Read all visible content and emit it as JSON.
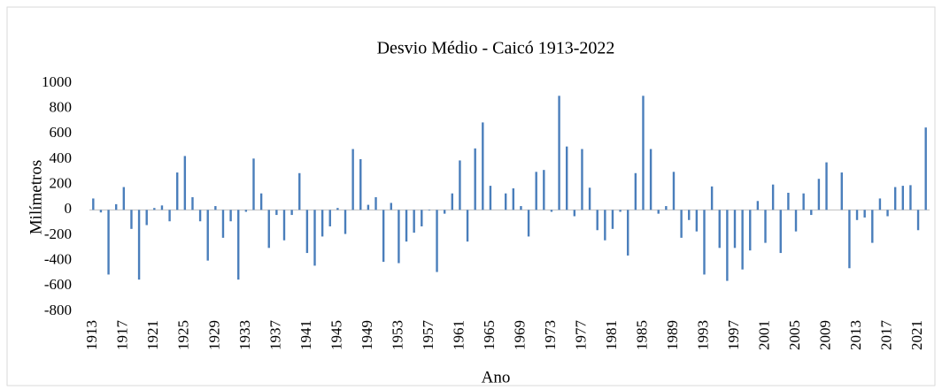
{
  "chart_data": {
    "type": "bar",
    "title": "Desvio Médio - Caicó 1913-2022",
    "x_label": "Ano",
    "y_label": "Milímetros",
    "color": "#4a7ebb",
    "grid": false,
    "ylim": [
      -800,
      1000
    ],
    "yticks": [
      -800,
      -600,
      -400,
      -200,
      0,
      200,
      400,
      600,
      800,
      1000
    ],
    "categories": [
      "1913",
      null,
      null,
      null,
      "1917",
      null,
      null,
      null,
      "1921",
      null,
      null,
      null,
      "1925",
      null,
      null,
      null,
      "1929",
      null,
      null,
      null,
      "1933",
      null,
      null,
      null,
      "1937",
      null,
      null,
      null,
      "1941",
      null,
      null,
      null,
      "1945",
      null,
      null,
      null,
      "1949",
      null,
      null,
      null,
      "1953",
      null,
      null,
      null,
      "1957",
      null,
      null,
      null,
      "1961",
      null,
      null,
      null,
      "1965",
      null,
      null,
      null,
      "1969",
      null,
      null,
      null,
      "1973",
      null,
      null,
      null,
      "1977",
      null,
      null,
      null,
      "1981",
      null,
      null,
      null,
      "1985",
      null,
      null,
      null,
      "1989",
      null,
      null,
      null,
      "1993",
      null,
      null,
      null,
      "1997",
      null,
      null,
      null,
      "2001",
      null,
      null,
      null,
      "2005",
      null,
      null,
      null,
      "2009",
      null,
      null,
      null,
      "2013",
      null,
      null,
      null,
      "2017",
      null,
      null,
      null,
      "2021",
      null
    ],
    "values": [
      90,
      -20,
      -510,
      45,
      180,
      -150,
      -550,
      -120,
      15,
      35,
      -90,
      295,
      425,
      100,
      -90,
      -400,
      30,
      -220,
      -90,
      -550,
      -15,
      405,
      130,
      -300,
      -40,
      -240,
      -40,
      290,
      -340,
      -440,
      -210,
      -130,
      15,
      -190,
      480,
      400,
      40,
      100,
      -410,
      55,
      -420,
      -250,
      -180,
      -130,
      -5,
      -490,
      -30,
      130,
      390,
      -250,
      485,
      690,
      190,
      0,
      130,
      170,
      30,
      -210,
      300,
      315,
      -15,
      900,
      500,
      -50,
      480,
      175,
      -160,
      -240,
      -150,
      -15,
      -360,
      290,
      900,
      480,
      -30,
      30,
      300,
      -220,
      -80,
      -170,
      -510,
      185,
      -300,
      -560,
      -300,
      -470,
      -320,
      70,
      -260,
      200,
      -340,
      135,
      -170,
      130,
      -40,
      245,
      375,
      0,
      295,
      -460,
      -80,
      -60,
      -260,
      90,
      -50,
      180,
      190,
      195,
      -160,
      650
    ]
  }
}
